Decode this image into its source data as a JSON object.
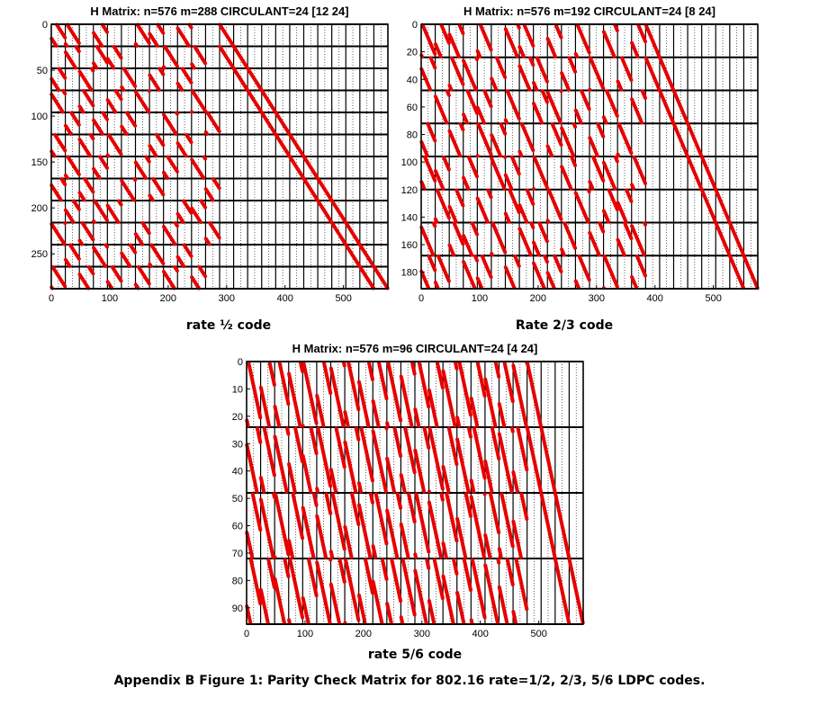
{
  "figure_caption": "Appendix B Figure 1:  Parity Check Matrix for 802.16 rate=1/2, 2/3, 5/6 LDPC codes.",
  "marker_color": "#e60000",
  "chart_data": [
    {
      "type": "scatter",
      "title": "H Matrix: n=576 m=288 CIRCULANT=24  [12 24]",
      "caption": "rate ½ code",
      "n": 576,
      "m": 288,
      "circulant": 24,
      "xlim": [
        0,
        576
      ],
      "ylim": [
        288,
        0
      ],
      "xticks": [
        0,
        100,
        200,
        300,
        400,
        500
      ],
      "yticks": [
        0,
        50,
        100,
        150,
        200,
        250
      ],
      "parity_block_shifts": [
        0,
        0,
        0,
        0,
        0,
        0,
        0,
        0,
        0,
        0,
        0,
        0
      ],
      "info_blocks": [
        [
          0,
          0,
          9
        ],
        [
          0,
          1,
          3
        ],
        [
          0,
          3,
          15
        ],
        [
          0,
          6,
          3
        ],
        [
          0,
          7,
          14
        ],
        [
          0,
          9,
          20
        ],
        [
          1,
          1,
          18
        ],
        [
          1,
          3,
          6
        ],
        [
          1,
          4,
          11
        ],
        [
          1,
          8,
          2
        ],
        [
          1,
          10,
          5
        ],
        [
          2,
          0,
          13
        ],
        [
          2,
          2,
          21
        ],
        [
          2,
          5,
          4
        ],
        [
          2,
          7,
          17
        ],
        [
          2,
          9,
          8
        ],
        [
          3,
          0,
          20
        ],
        [
          3,
          2,
          7
        ],
        [
          3,
          4,
          14
        ],
        [
          3,
          6,
          23
        ],
        [
          3,
          10,
          1
        ],
        [
          4,
          1,
          10
        ],
        [
          4,
          3,
          16
        ],
        [
          4,
          5,
          9
        ],
        [
          4,
          8,
          22
        ],
        [
          4,
          11,
          3
        ],
        [
          5,
          0,
          6
        ],
        [
          5,
          2,
          19
        ],
        [
          5,
          4,
          2
        ],
        [
          5,
          7,
          12
        ],
        [
          5,
          9,
          15
        ],
        [
          6,
          1,
          4
        ],
        [
          6,
          3,
          11
        ],
        [
          6,
          6,
          18
        ],
        [
          6,
          8,
          7
        ],
        [
          6,
          10,
          21
        ],
        [
          7,
          0,
          17
        ],
        [
          7,
          2,
          9
        ],
        [
          7,
          5,
          22
        ],
        [
          7,
          7,
          6
        ],
        [
          7,
          11,
          13
        ],
        [
          8,
          1,
          14
        ],
        [
          8,
          3,
          2
        ],
        [
          8,
          4,
          19
        ],
        [
          8,
          9,
          10
        ],
        [
          8,
          10,
          16
        ],
        [
          9,
          0,
          23
        ],
        [
          9,
          2,
          5
        ],
        [
          9,
          6,
          12
        ],
        [
          9,
          8,
          20
        ],
        [
          9,
          11,
          7
        ],
        [
          10,
          1,
          8
        ],
        [
          10,
          3,
          21
        ],
        [
          10,
          5,
          15
        ],
        [
          10,
          7,
          3
        ],
        [
          10,
          9,
          11
        ],
        [
          11,
          0,
          2
        ],
        [
          11,
          2,
          16
        ],
        [
          11,
          4,
          8
        ],
        [
          11,
          6,
          5
        ],
        [
          11,
          8,
          19
        ],
        [
          11,
          10,
          13
        ]
      ]
    },
    {
      "type": "scatter",
      "title": "H Matrix: n=576 m=192 CIRCULANT=24  [8 24]",
      "caption": "Rate 2/3 code",
      "n": 576,
      "m": 192,
      "circulant": 24,
      "xlim": [
        0,
        576
      ],
      "ylim": [
        192,
        0
      ],
      "xticks": [
        0,
        100,
        200,
        300,
        400,
        500
      ],
      "yticks": [
        0,
        20,
        40,
        60,
        80,
        100,
        120,
        140,
        160,
        180
      ],
      "parity_block_shifts": [
        0,
        0,
        0,
        0,
        0,
        0,
        0,
        0
      ],
      "info_blocks": [
        [
          0,
          0,
          2
        ],
        [
          0,
          1,
          10
        ],
        [
          0,
          2,
          17
        ],
        [
          0,
          4,
          5
        ],
        [
          0,
          6,
          21
        ],
        [
          0,
          7,
          8
        ],
        [
          0,
          9,
          14
        ],
        [
          0,
          11,
          3
        ],
        [
          0,
          13,
          19
        ],
        [
          0,
          15,
          11
        ],
        [
          1,
          0,
          16
        ],
        [
          1,
          2,
          4
        ],
        [
          1,
          3,
          22
        ],
        [
          1,
          5,
          9
        ],
        [
          1,
          7,
          18
        ],
        [
          1,
          8,
          6
        ],
        [
          1,
          10,
          13
        ],
        [
          1,
          12,
          1
        ],
        [
          1,
          14,
          7
        ],
        [
          2,
          1,
          20
        ],
        [
          2,
          3,
          7
        ],
        [
          2,
          4,
          12
        ],
        [
          2,
          6,
          3
        ],
        [
          2,
          8,
          15
        ],
        [
          2,
          9,
          23
        ],
        [
          2,
          11,
          10
        ],
        [
          2,
          13,
          5
        ],
        [
          2,
          15,
          18
        ],
        [
          3,
          0,
          11
        ],
        [
          3,
          2,
          19
        ],
        [
          3,
          4,
          1
        ],
        [
          3,
          5,
          16
        ],
        [
          3,
          7,
          4
        ],
        [
          3,
          9,
          8
        ],
        [
          3,
          10,
          21
        ],
        [
          3,
          12,
          14
        ],
        [
          3,
          14,
          2
        ],
        [
          4,
          0,
          6
        ],
        [
          4,
          1,
          14
        ],
        [
          4,
          3,
          9
        ],
        [
          4,
          5,
          23
        ],
        [
          4,
          6,
          11
        ],
        [
          4,
          8,
          1
        ],
        [
          4,
          10,
          17
        ],
        [
          4,
          12,
          6
        ],
        [
          4,
          13,
          20
        ],
        [
          4,
          15,
          4
        ],
        [
          5,
          1,
          3
        ],
        [
          5,
          2,
          12
        ],
        [
          5,
          4,
          18
        ],
        [
          5,
          6,
          7
        ],
        [
          5,
          7,
          13
        ],
        [
          5,
          9,
          2
        ],
        [
          5,
          11,
          22
        ],
        [
          5,
          13,
          9
        ],
        [
          5,
          14,
          15
        ],
        [
          6,
          0,
          21
        ],
        [
          6,
          2,
          8
        ],
        [
          6,
          3,
          15
        ],
        [
          6,
          5,
          2
        ],
        [
          6,
          7,
          20
        ],
        [
          6,
          8,
          10
        ],
        [
          6,
          10,
          5
        ],
        [
          6,
          12,
          17
        ],
        [
          6,
          14,
          12
        ],
        [
          6,
          15,
          22
        ],
        [
          7,
          0,
          13
        ],
        [
          7,
          1,
          5
        ],
        [
          7,
          3,
          20
        ],
        [
          7,
          4,
          8
        ],
        [
          7,
          6,
          16
        ],
        [
          7,
          8,
          19
        ],
        [
          7,
          9,
          12
        ],
        [
          7,
          11,
          6
        ],
        [
          7,
          13,
          1
        ],
        [
          7,
          15,
          9
        ]
      ]
    },
    {
      "type": "scatter",
      "title": "H Matrix: n=576 m=96 CIRCULANT=24  [4 24]",
      "caption": "rate 5/6 code",
      "n": 576,
      "m": 96,
      "circulant": 24,
      "xlim": [
        0,
        576
      ],
      "ylim": [
        96,
        0
      ],
      "xticks": [
        0,
        100,
        200,
        300,
        400,
        500
      ],
      "yticks": [
        0,
        10,
        20,
        30,
        40,
        50,
        60,
        70,
        80,
        90
      ],
      "parity_block_shifts": [
        0,
        0,
        0,
        0
      ],
      "info_blocks": [
        [
          0,
          0,
          3
        ],
        [
          0,
          1,
          15
        ],
        [
          0,
          2,
          8
        ],
        [
          0,
          3,
          20
        ],
        [
          0,
          4,
          1
        ],
        [
          0,
          5,
          12
        ],
        [
          0,
          6,
          22
        ],
        [
          0,
          7,
          6
        ],
        [
          0,
          8,
          17
        ],
        [
          0,
          9,
          10
        ],
        [
          0,
          10,
          2
        ],
        [
          0,
          11,
          19
        ],
        [
          0,
          12,
          7
        ],
        [
          0,
          13,
          14
        ],
        [
          0,
          14,
          21
        ],
        [
          0,
          15,
          4
        ],
        [
          0,
          16,
          11
        ],
        [
          0,
          17,
          18
        ],
        [
          0,
          18,
          9
        ],
        [
          0,
          19,
          23
        ],
        [
          1,
          0,
          18
        ],
        [
          1,
          1,
          6
        ],
        [
          1,
          2,
          21
        ],
        [
          1,
          3,
          11
        ],
        [
          1,
          4,
          14
        ],
        [
          1,
          5,
          2
        ],
        [
          1,
          6,
          9
        ],
        [
          1,
          7,
          19
        ],
        [
          1,
          8,
          4
        ],
        [
          1,
          9,
          23
        ],
        [
          1,
          10,
          13
        ],
        [
          1,
          11,
          7
        ],
        [
          1,
          12,
          16
        ],
        [
          1,
          13,
          1
        ],
        [
          1,
          14,
          10
        ],
        [
          1,
          15,
          20
        ],
        [
          1,
          16,
          5
        ],
        [
          1,
          17,
          12
        ],
        [
          1,
          18,
          22
        ],
        [
          1,
          19,
          8
        ],
        [
          2,
          0,
          10
        ],
        [
          2,
          1,
          22
        ],
        [
          2,
          2,
          1
        ],
        [
          2,
          3,
          7
        ],
        [
          2,
          4,
          19
        ],
        [
          2,
          5,
          16
        ],
        [
          2,
          6,
          3
        ],
        [
          2,
          7,
          12
        ],
        [
          2,
          8,
          20
        ],
        [
          2,
          9,
          5
        ],
        [
          2,
          10,
          18
        ],
        [
          2,
          11,
          13
        ],
        [
          2,
          12,
          2
        ],
        [
          2,
          13,
          21
        ],
        [
          2,
          14,
          6
        ],
        [
          2,
          15,
          15
        ],
        [
          2,
          16,
          23
        ],
        [
          2,
          17,
          9
        ],
        [
          2,
          18,
          4
        ],
        [
          2,
          19,
          14
        ],
        [
          3,
          0,
          7
        ],
        [
          3,
          1,
          13
        ],
        [
          3,
          2,
          17
        ],
        [
          3,
          3,
          2
        ],
        [
          3,
          4,
          10
        ],
        [
          3,
          5,
          23
        ],
        [
          3,
          6,
          15
        ],
        [
          3,
          7,
          1
        ],
        [
          3,
          8,
          11
        ],
        [
          3,
          9,
          16
        ],
        [
          3,
          10,
          8
        ],
        [
          3,
          11,
          3
        ],
        [
          3,
          12,
          20
        ],
        [
          3,
          13,
          9
        ],
        [
          3,
          14,
          18
        ],
        [
          3,
          15,
          12
        ],
        [
          3,
          16,
          2
        ],
        [
          3,
          17,
          22
        ],
        [
          3,
          18,
          14
        ],
        [
          3,
          19,
          5
        ]
      ]
    }
  ]
}
